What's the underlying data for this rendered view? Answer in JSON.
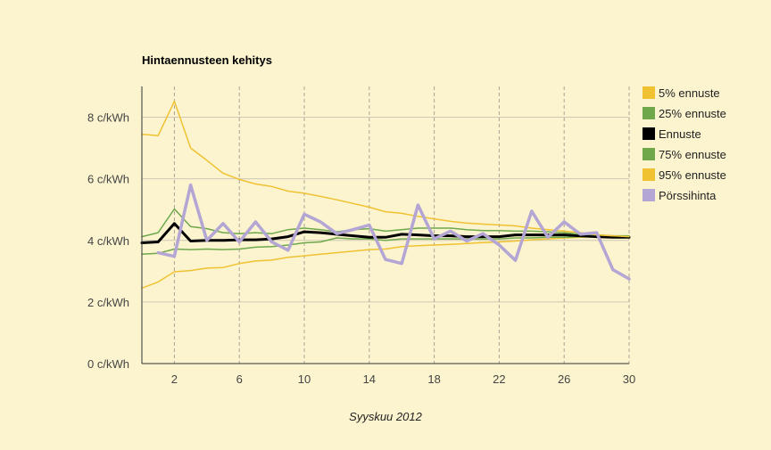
{
  "chart_data": {
    "type": "line",
    "title": "Hintaennusteen kehitys",
    "xlabel": "Syyskuu 2012",
    "ylabel": "",
    "ylim": [
      0,
      9
    ],
    "xlim": [
      0,
      30
    ],
    "yticks": [
      {
        "value": 0,
        "label": "0 c/kWh"
      },
      {
        "value": 2,
        "label": "2 c/kWh"
      },
      {
        "value": 4,
        "label": "4 c/kWh"
      },
      {
        "value": 6,
        "label": "6 c/kWh"
      },
      {
        "value": 8,
        "label": "8 c/kWh"
      }
    ],
    "xticks": [
      {
        "value": 2,
        "label": "2"
      },
      {
        "value": 6,
        "label": "6"
      },
      {
        "value": 10,
        "label": "10"
      },
      {
        "value": 14,
        "label": "14"
      },
      {
        "value": 18,
        "label": "18"
      },
      {
        "value": 22,
        "label": "22"
      },
      {
        "value": 26,
        "label": "26"
      },
      {
        "value": 30,
        "label": "30"
      }
    ],
    "x_grid": [
      2,
      6,
      10,
      14,
      18,
      22,
      26,
      30
    ],
    "series": [
      {
        "name": "5% ennuste",
        "color": "#f0c232",
        "width": 1.5,
        "x": [
          0,
          1,
          2,
          3,
          4,
          5,
          6,
          7,
          8,
          9,
          10,
          11,
          12,
          13,
          14,
          15,
          16,
          17,
          18,
          19,
          20,
          21,
          22,
          23,
          24,
          25,
          26,
          27,
          28,
          29,
          30
        ],
        "values": [
          2.45,
          2.65,
          2.98,
          3.02,
          3.1,
          3.12,
          3.25,
          3.33,
          3.36,
          3.45,
          3.5,
          3.55,
          3.6,
          3.65,
          3.7,
          3.72,
          3.8,
          3.83,
          3.85,
          3.87,
          3.9,
          3.93,
          3.95,
          3.98,
          4.02,
          4.05,
          4.08,
          4.1,
          4.12,
          4.12,
          4.12
        ]
      },
      {
        "name": "25% ennuste",
        "color": "#6ea84b",
        "width": 1.5,
        "x": [
          0,
          1,
          2,
          3,
          4,
          5,
          6,
          7,
          8,
          9,
          10,
          11,
          12,
          13,
          14,
          15,
          16,
          17,
          18,
          19,
          20,
          21,
          22,
          23,
          24,
          25,
          26,
          27,
          28,
          29,
          30
        ],
        "values": [
          3.55,
          3.58,
          3.72,
          3.7,
          3.72,
          3.7,
          3.72,
          3.78,
          3.8,
          3.85,
          3.92,
          3.95,
          4.08,
          4.05,
          4.05,
          4.0,
          4.05,
          4.05,
          4.05,
          4.05,
          4.05,
          4.05,
          4.05,
          4.08,
          4.08,
          4.1,
          4.1,
          4.12,
          4.12,
          4.12,
          4.12
        ]
      },
      {
        "name": "Ennuste",
        "color": "#000000",
        "width": 3,
        "x": [
          0,
          1,
          2,
          3,
          4,
          5,
          6,
          7,
          8,
          9,
          10,
          11,
          12,
          13,
          14,
          15,
          16,
          17,
          18,
          19,
          20,
          21,
          22,
          23,
          24,
          25,
          26,
          27,
          28,
          29,
          30
        ],
        "values": [
          3.92,
          3.95,
          4.55,
          3.98,
          4.0,
          4.0,
          4.02,
          4.02,
          4.05,
          4.12,
          4.28,
          4.25,
          4.2,
          4.15,
          4.1,
          4.1,
          4.2,
          4.18,
          4.15,
          4.15,
          4.12,
          4.12,
          4.12,
          4.18,
          4.18,
          4.18,
          4.18,
          4.15,
          4.12,
          4.1,
          4.1
        ]
      },
      {
        "name": "75% ennuste",
        "color": "#6ea84b",
        "width": 1.5,
        "x": [
          0,
          1,
          2,
          3,
          4,
          5,
          6,
          7,
          8,
          9,
          10,
          11,
          12,
          13,
          14,
          15,
          16,
          17,
          18,
          19,
          20,
          21,
          22,
          23,
          24,
          25,
          26,
          27,
          28,
          29,
          30
        ],
        "values": [
          4.12,
          4.25,
          5.02,
          4.45,
          4.38,
          4.25,
          4.22,
          4.25,
          4.22,
          4.35,
          4.4,
          4.35,
          4.28,
          4.35,
          4.38,
          4.3,
          4.35,
          4.4,
          4.4,
          4.4,
          4.35,
          4.32,
          4.32,
          4.3,
          4.3,
          4.28,
          4.25,
          4.2,
          4.18,
          4.15,
          4.15
        ]
      },
      {
        "name": "95% ennuste",
        "color": "#f0c232",
        "width": 1.5,
        "x": [
          0,
          1,
          2,
          3,
          4,
          5,
          6,
          7,
          8,
          9,
          10,
          11,
          12,
          13,
          14,
          15,
          16,
          17,
          18,
          19,
          20,
          21,
          22,
          23,
          24,
          25,
          26,
          27,
          28,
          29,
          30
        ],
        "values": [
          7.45,
          7.4,
          8.52,
          7.0,
          6.6,
          6.18,
          5.98,
          5.83,
          5.75,
          5.6,
          5.53,
          5.43,
          5.32,
          5.2,
          5.08,
          4.93,
          4.88,
          4.78,
          4.7,
          4.62,
          4.56,
          4.53,
          4.5,
          4.47,
          4.4,
          4.35,
          4.3,
          4.25,
          4.18,
          4.15,
          4.12
        ]
      },
      {
        "name": "Pörssihinta",
        "color": "#b3a5d4",
        "width": 3.5,
        "x": [
          1,
          2,
          3,
          4,
          5,
          6,
          7,
          8,
          9,
          10,
          11,
          12,
          13,
          14,
          15,
          16,
          17,
          18,
          19,
          20,
          21,
          22,
          23,
          24,
          25,
          26,
          27,
          28,
          29,
          30
        ],
        "values": [
          3.6,
          3.48,
          5.8,
          4.0,
          4.55,
          3.95,
          4.6,
          3.95,
          3.68,
          4.85,
          4.6,
          4.22,
          4.35,
          4.5,
          3.38,
          3.25,
          5.15,
          4.05,
          4.3,
          3.98,
          4.22,
          3.85,
          3.35,
          4.95,
          4.1,
          4.6,
          4.2,
          4.25,
          3.05,
          2.75
        ]
      }
    ]
  }
}
